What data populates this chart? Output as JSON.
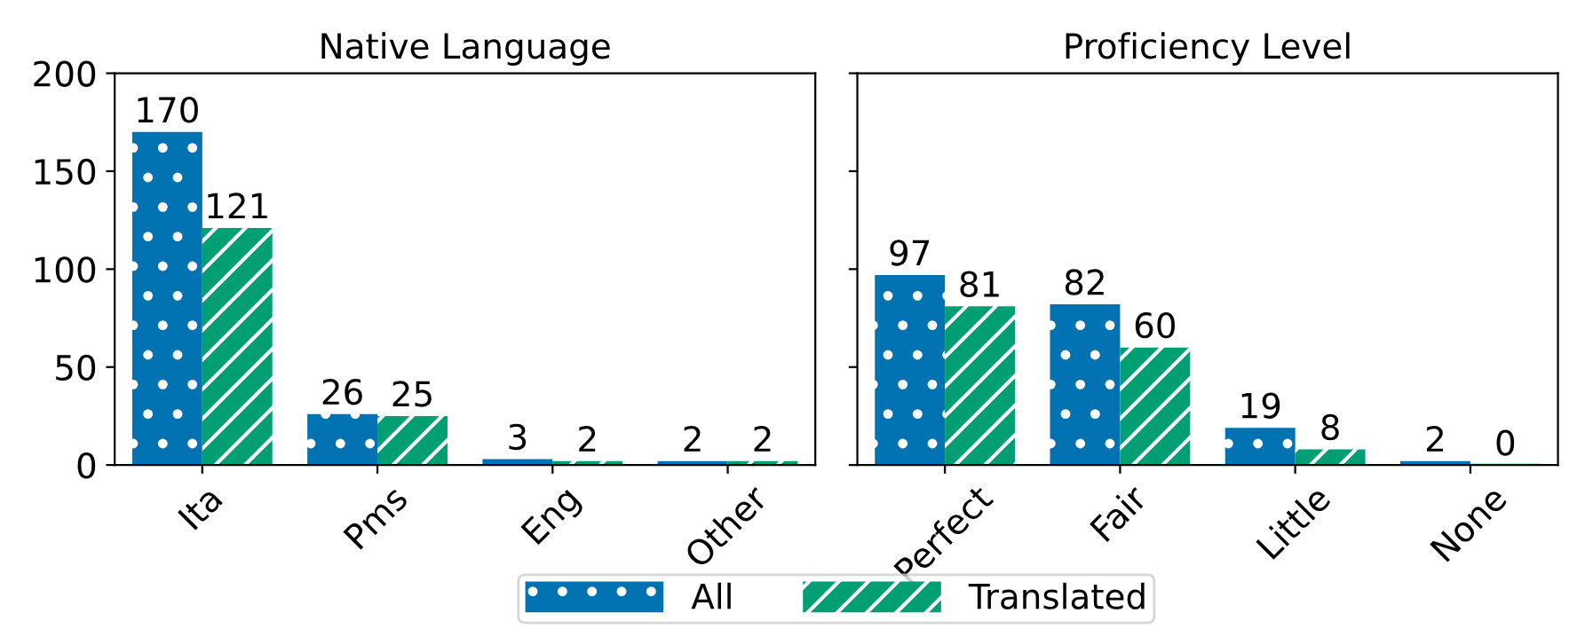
{
  "chart_data": [
    {
      "type": "bar",
      "title": "Native Language",
      "categories": [
        "Ita",
        "Pms",
        "Eng",
        "Other"
      ],
      "series": [
        {
          "name": "All",
          "color": "#0072b2",
          "values": [
            170,
            26,
            3,
            2
          ]
        },
        {
          "name": "Translated",
          "color": "#009e73",
          "values": [
            121,
            25,
            2,
            2
          ]
        }
      ],
      "ylim": [
        0,
        200
      ],
      "yticks": [
        0,
        50,
        100,
        150,
        200
      ],
      "data_labels": true,
      "legend": "bottom"
    },
    {
      "type": "bar",
      "title": "Proficiency Level",
      "categories": [
        "Perfect",
        "Fair",
        "Little",
        "None"
      ],
      "series": [
        {
          "name": "All",
          "color": "#0072b2",
          "values": [
            97,
            82,
            19,
            2
          ]
        },
        {
          "name": "Translated",
          "color": "#009e73",
          "values": [
            81,
            60,
            8,
            0
          ]
        }
      ],
      "ylim": [
        0,
        200
      ],
      "yticks": [
        0,
        50,
        100,
        150,
        200
      ],
      "data_labels": true,
      "tick_labels": "x"
    }
  ]
}
